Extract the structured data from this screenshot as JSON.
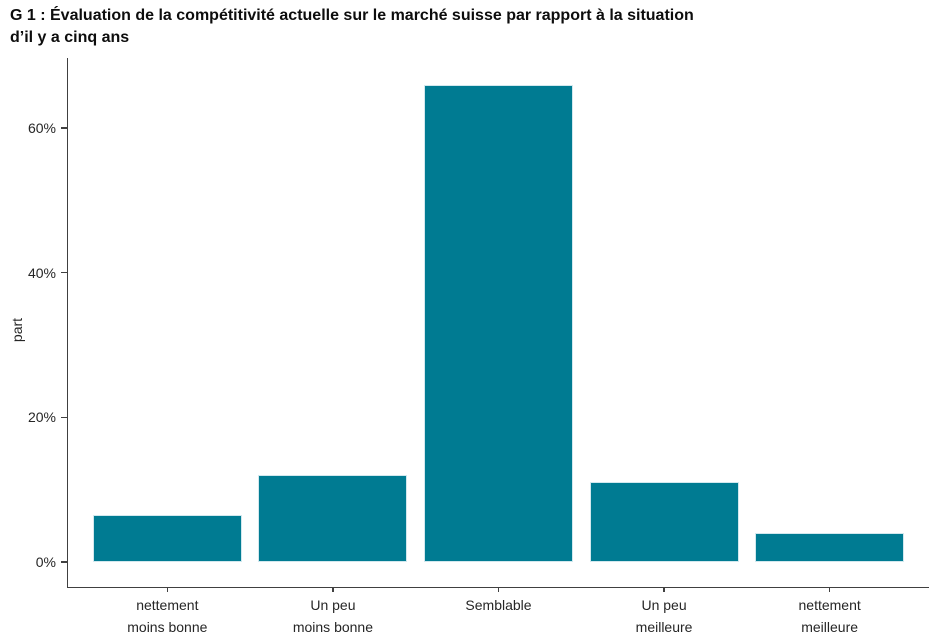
{
  "chart_data": {
    "type": "bar",
    "title": "G 1 : Évaluation de la compétitivité actuelle sur le marché suisse par rapport à la situation d’il y a cinq ans",
    "title_lines": [
      "G 1 : Évaluation de la compétitivité actuelle sur le marché suisse par rapport à la situation",
      "d’il y a cinq ans"
    ],
    "categories": [
      "nettement moins bonne",
      "Un peu moins bonne",
      "Semblable",
      "Un peu meilleure",
      "nettement meilleure"
    ],
    "category_lines": [
      [
        "nettement",
        "moins bonne"
      ],
      [
        "Un peu",
        "moins bonne"
      ],
      [
        "Semblable"
      ],
      [
        "Un peu",
        "meilleure"
      ],
      [
        "nettement",
        "meilleure"
      ]
    ],
    "values": [
      6.5,
      12,
      66,
      11,
      4
    ],
    "xlabel": "",
    "ylabel": "part",
    "ylim": [
      0,
      69.7
    ],
    "yticks": [
      0,
      20,
      40,
      60
    ],
    "ytick_labels": [
      "0%",
      "20%",
      "40%",
      "60%"
    ],
    "grid": false,
    "legend": false,
    "bar_color": "#007b92",
    "bar_border_color": "#d2e8ee",
    "axis_color": "#404040",
    "text_color": "#262626"
  }
}
